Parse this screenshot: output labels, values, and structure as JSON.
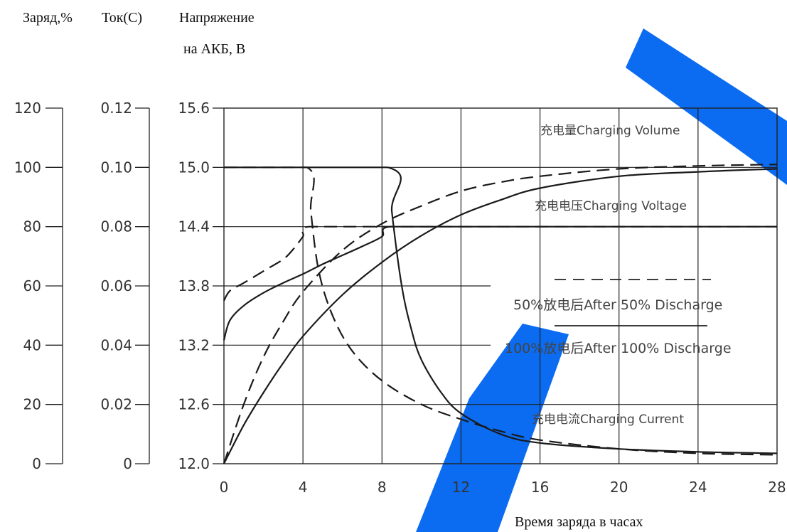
{
  "chart_data": {
    "type": "line",
    "axis_titles": {
      "charge": "Заряд,%",
      "current": "Ток(С)",
      "voltage_1": "Напряжение",
      "voltage_2": "на АКБ, В",
      "x": "Время заряда в часах"
    },
    "x_ticks": [
      "0",
      "4",
      "8",
      "12",
      "16",
      "20",
      "24",
      "28"
    ],
    "xlim": [
      0,
      28
    ],
    "voltage_ticks": [
      "15.6",
      "15.0",
      "14.4",
      "13.8",
      "13.2",
      "12.6",
      "12.0"
    ],
    "current_ticks": [
      "0.12",
      "0.10",
      "0.08",
      "0.06",
      "0.04",
      "0.02",
      "0"
    ],
    "charge_ticks": [
      "120",
      "100",
      "80",
      "60",
      "40",
      "20",
      "0"
    ],
    "voltage_range": [
      12.0,
      15.6
    ],
    "current_range": [
      0,
      0.12
    ],
    "charge_range": [
      0,
      120
    ],
    "grid": true,
    "annotations": {
      "volume": "充电量Charging Volume",
      "voltage": "充电电压Charging Voltage",
      "after50": "50%放电后After 50% Discharge",
      "after100": "100%放电后After 100% Discharge",
      "current": "充电电流Charging Current"
    },
    "series": [
      {
        "name": "充电量Charging Volume (After 50% Discharge)",
        "style": "dashed",
        "x": [
          0,
          1,
          2,
          3,
          4,
          6,
          8,
          10,
          12,
          14,
          16,
          20,
          24,
          28
        ],
        "y": [
          0,
          20,
          36,
          48,
          58,
          72,
          81,
          87,
          92,
          95,
          97,
          99.5,
          100.5,
          101
        ]
      },
      {
        "name": "充电量Charging Volume (After 100% Discharge)",
        "style": "solid",
        "x": [
          0,
          1,
          2,
          3,
          4,
          6,
          8,
          10,
          12,
          14,
          16,
          20,
          24,
          28
        ],
        "y": [
          0,
          13,
          24,
          34,
          43,
          57,
          68,
          77,
          84,
          89,
          93,
          97,
          98.5,
          99.5
        ]
      },
      {
        "name": "充电电压Charging Voltage (After 50% Discharge)",
        "style": "dashed",
        "x": [
          0,
          0.3,
          1,
          2,
          3,
          3.5,
          4,
          4.3,
          8,
          12,
          16,
          20,
          24,
          28
        ],
        "y": [
          13.65,
          13.75,
          13.83,
          13.95,
          14.07,
          14.17,
          14.3,
          14.4,
          14.4,
          14.4,
          14.4,
          14.4,
          14.4,
          14.4
        ]
      },
      {
        "name": "充电电压Charging Voltage (After 100% Discharge)",
        "style": "solid",
        "x": [
          0,
          0.3,
          1,
          2,
          3,
          4,
          5,
          6,
          7,
          8,
          8.4,
          12,
          16,
          20,
          24,
          28
        ],
        "y": [
          13.25,
          13.45,
          13.6,
          13.73,
          13.83,
          13.92,
          14.02,
          14.11,
          14.2,
          14.3,
          14.4,
          14.4,
          14.4,
          14.4,
          14.4,
          14.4
        ]
      },
      {
        "name": "充电电流Charging Current (After 50% Discharge)",
        "style": "dashed",
        "x": [
          0,
          4.2,
          4.4,
          4.8,
          5.5,
          6.5,
          8,
          10,
          12,
          14,
          16,
          20,
          24,
          28
        ],
        "y": [
          0.1,
          0.1,
          0.085,
          0.065,
          0.05,
          0.038,
          0.028,
          0.02,
          0.015,
          0.011,
          0.008,
          0.005,
          0.0035,
          0.003
        ]
      },
      {
        "name": "充电电流Charging Current (After 100% Discharge)",
        "style": "solid",
        "x": [
          0,
          8.3,
          8.5,
          9,
          9.5,
          10,
          11,
          12,
          14,
          16,
          20,
          24,
          28
        ],
        "y": [
          0.1,
          0.1,
          0.085,
          0.06,
          0.045,
          0.035,
          0.024,
          0.017,
          0.01,
          0.007,
          0.005,
          0.004,
          0.0035
        ]
      }
    ]
  },
  "watermark": {
    "color": "#0b6cf2"
  }
}
